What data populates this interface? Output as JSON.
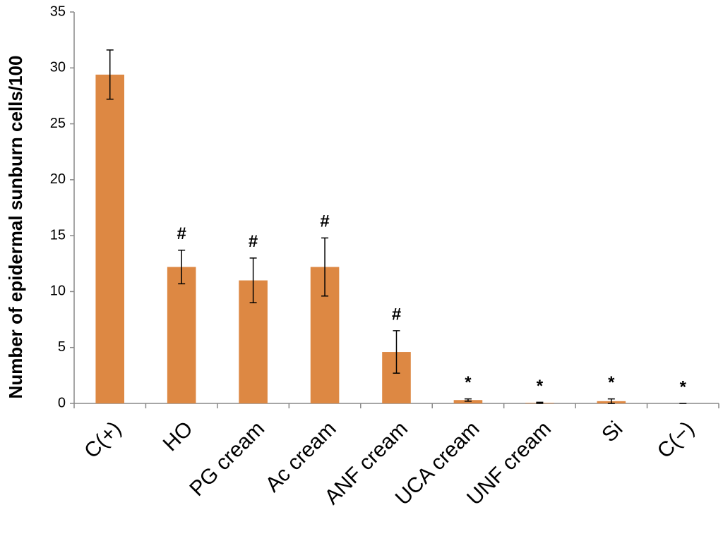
{
  "chart_data": {
    "type": "bar",
    "y_label": "Number of epidermal sunburn cells/100",
    "categories": [
      "C(+)",
      "HO",
      "PG cream",
      "Ac cream",
      "ANF cream",
      "UCA cream",
      "UNF cream",
      "Si",
      "C(−)"
    ],
    "values": [
      29.4,
      12.2,
      11.0,
      12.2,
      4.6,
      0.3,
      0.05,
      0.2,
      0
    ],
    "errors": [
      2.2,
      1.5,
      2.0,
      2.6,
      1.9,
      0.1,
      0.05,
      0.2,
      0
    ],
    "annotations": [
      null,
      "#",
      "#",
      "#",
      "#",
      "*",
      "*",
      "*",
      "*"
    ],
    "color": "#dd8843",
    "ylim": [
      0,
      35
    ],
    "yticks": [
      0,
      5,
      10,
      15,
      20,
      25,
      30,
      35
    ],
    "grid": false
  }
}
